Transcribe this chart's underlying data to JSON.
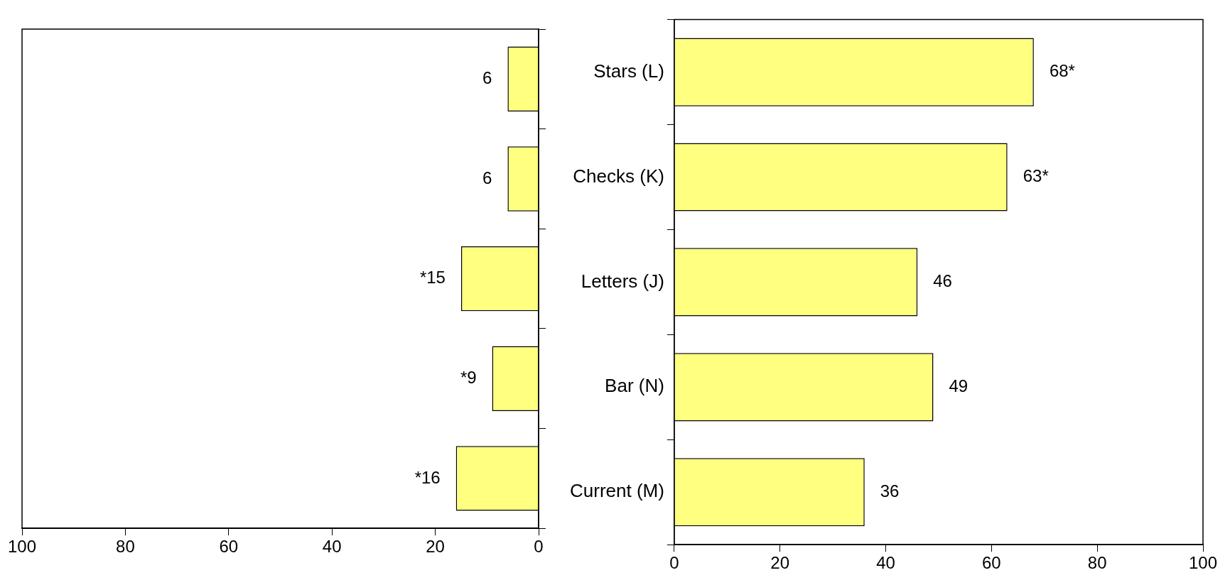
{
  "chart_data": [
    {
      "type": "bar",
      "orientation": "horizontal",
      "categories": [
        null,
        null,
        null,
        null,
        null
      ],
      "values": [
        6,
        6,
        15,
        9,
        16
      ],
      "value_labels": [
        "6",
        "6",
        "*15",
        "*9",
        "*16"
      ],
      "color": "#ffff80",
      "xlim": [
        100,
        0
      ],
      "xticks": [
        100,
        80,
        60,
        40,
        20,
        0
      ],
      "tick_labels": "x",
      "grid": false
    },
    {
      "type": "bar",
      "orientation": "horizontal",
      "categories": [
        "Stars (L)",
        "Checks (K)",
        "Letters (J)",
        "Bar (N)",
        "Current (M)"
      ],
      "values": [
        68,
        63,
        46,
        49,
        36
      ],
      "value_labels": [
        "68*",
        "63*",
        "46",
        "49",
        "36"
      ],
      "color": "#ffff80",
      "xlim": [
        0,
        100
      ],
      "xticks": [
        0,
        20,
        40,
        60,
        80,
        100
      ],
      "grid": false
    }
  ]
}
